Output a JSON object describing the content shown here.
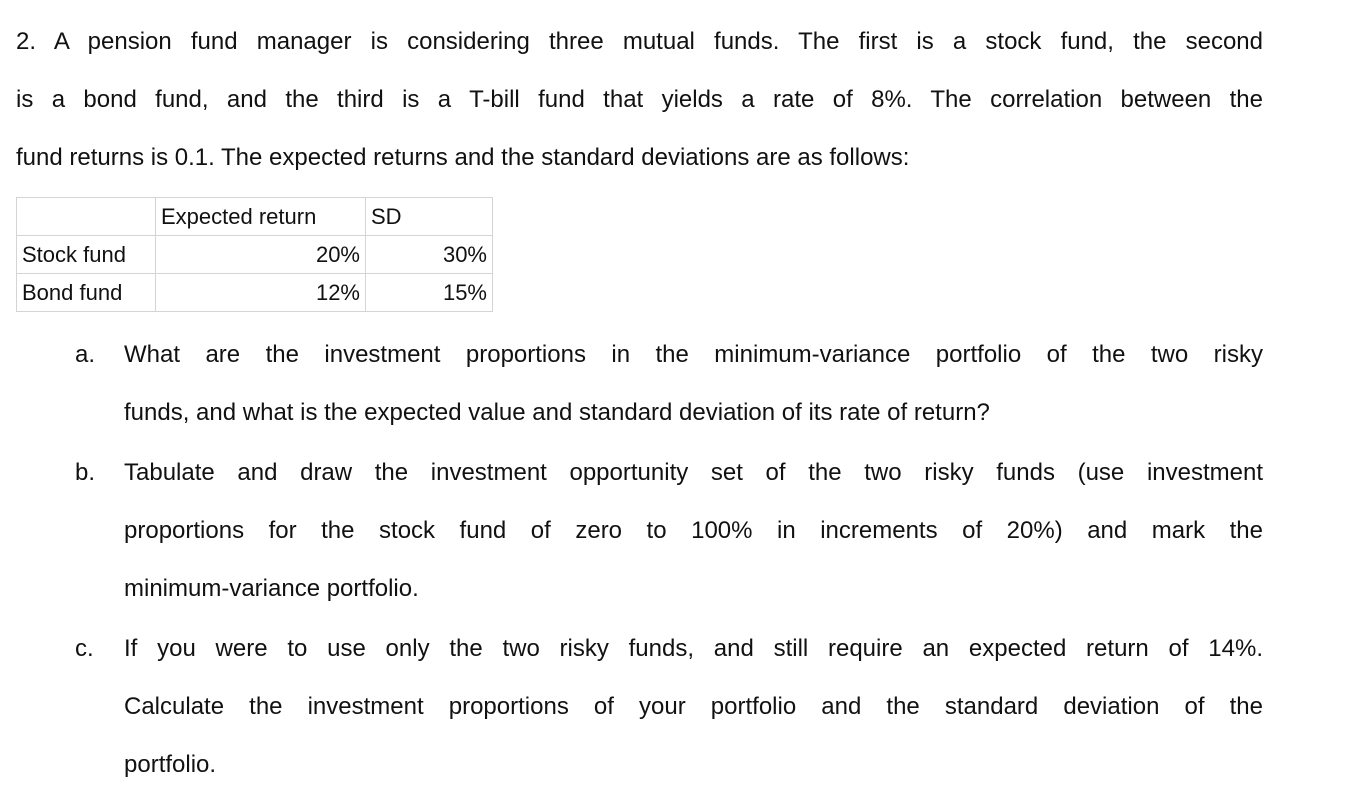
{
  "intro": {
    "lines": [
      "2. A pension fund manager is considering three mutual funds. The first is a stock fund, the second",
      "is a bond fund, and the third is a T-bill fund that yields a rate of 8%. The correlation between the",
      "fund returns is 0.1. The expected returns and the standard deviations are as follows:"
    ]
  },
  "table": {
    "header": [
      "Expected return",
      "SD"
    ],
    "rows": [
      [
        "Stock fund",
        "20%",
        "30%"
      ],
      [
        "Bond fund",
        "12%",
        "15%"
      ]
    ]
  },
  "questions": [
    {
      "label": "a.",
      "lines": [
        "What are the investment proportions in the minimum-variance portfolio of the two risky",
        "funds, and what is the expected value and standard deviation of its rate of return?"
      ]
    },
    {
      "label": "b.",
      "lines": [
        "Tabulate and draw the investment opportunity set of the two risky funds (use investment",
        "proportions for the stock fund of zero to 100% in increments of 20%) and mark the",
        "minimum-variance portfolio."
      ]
    },
    {
      "label": "c.",
      "lines": [
        "If you were to use only the two risky funds, and still require an expected return of 14%.",
        "Calculate the investment proportions of your portfolio and the standard deviation of the",
        "portfolio."
      ]
    }
  ]
}
